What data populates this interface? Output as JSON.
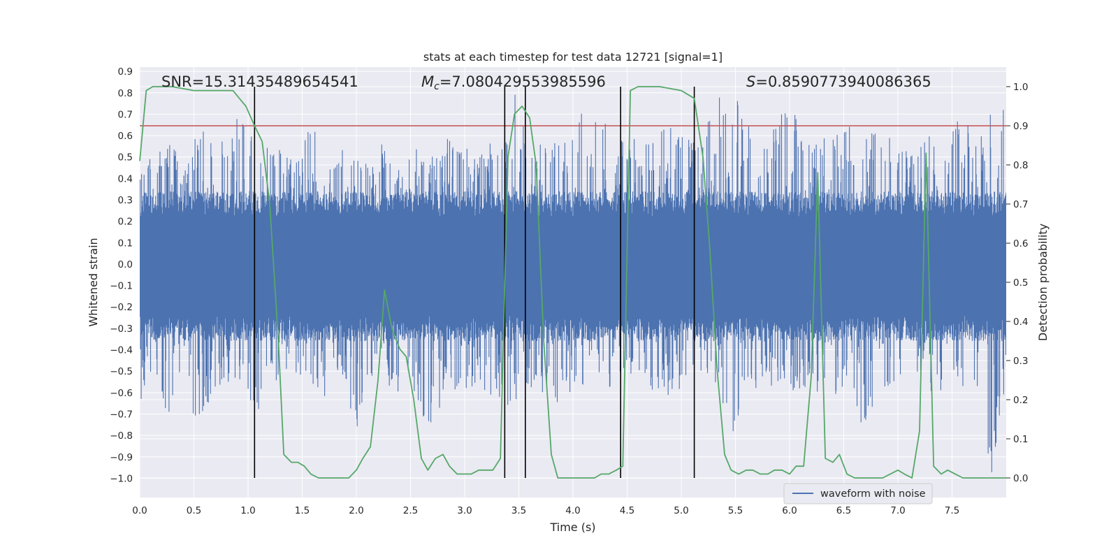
{
  "chart_data": {
    "type": "line",
    "title": "stats at each timestep for test data 12721 [signal=1]",
    "xlabel": "Time (s)",
    "ylabel_left": "Whitened strain",
    "ylabel_right": "Detection probability",
    "xlim": [
      0.0,
      8.0
    ],
    "ylim_left": [
      -1.09,
      0.92
    ],
    "ylim_right": [
      -0.05,
      1.05
    ],
    "xticks": [
      0.0,
      0.5,
      1.0,
      1.5,
      2.0,
      2.5,
      3.0,
      3.5,
      4.0,
      4.5,
      5.0,
      5.5,
      6.0,
      6.5,
      7.0,
      7.5
    ],
    "xtick_labels": [
      "0.0",
      "0.5",
      "1.0",
      "1.5",
      "2.0",
      "2.5",
      "3.0",
      "3.5",
      "4.0",
      "4.5",
      "5.0",
      "5.5",
      "6.0",
      "6.5",
      "7.0",
      "7.5"
    ],
    "yticks_left": [
      0.9,
      0.8,
      0.7,
      0.6,
      0.5,
      0.4,
      0.3,
      0.2,
      0.1,
      0.0,
      -0.1,
      -0.2,
      -0.3,
      -0.4,
      -0.5,
      -0.6,
      -0.7,
      -0.8,
      -0.9,
      -1.0
    ],
    "ytick_labels_left": [
      "0.9",
      "0.8",
      "0.7",
      "0.6",
      "0.5",
      "0.4",
      "0.3",
      "0.2",
      "0.1",
      "0.0",
      "−0.1",
      "−0.2",
      "−0.3",
      "−0.4",
      "−0.5",
      "−0.6",
      "−0.7",
      "−0.8",
      "−0.9",
      "−1.0"
    ],
    "yticks_right": [
      1.0,
      0.9,
      0.8,
      0.7,
      0.6,
      0.5,
      0.4,
      0.3,
      0.2,
      0.1,
      0.0
    ],
    "ytick_labels_right": [
      "1.0",
      "0.9",
      "0.8",
      "0.7",
      "0.6",
      "0.5",
      "0.4",
      "0.3",
      "0.2",
      "0.1",
      "0.0"
    ],
    "annotations": [
      {
        "prefix": "SNR",
        "suffix": "",
        "value": "=15.31435489654541",
        "x": 0.2
      },
      {
        "prefix": "M",
        "suffix": "c",
        "value": "=7.080429553985596",
        "x": 2.6
      },
      {
        "prefix": "S",
        "suffix": "",
        "value": "=0.8590773940086365",
        "x": 5.6
      }
    ],
    "threshold": {
      "value": 0.9,
      "axis": "right",
      "color": "#c44e52"
    },
    "vertical_lines": [
      1.06,
      3.37,
      3.56,
      4.44,
      5.12
    ],
    "waveform": {
      "name": "waveform with noise",
      "color": "#4c72b0",
      "x_range": [
        0.0,
        8.0
      ],
      "envelope_upper": [
        0.48,
        0.5,
        0.58,
        0.47,
        0.65,
        0.6,
        0.58,
        0.72,
        0.55,
        0.6,
        0.52,
        0.48,
        0.7,
        0.5,
        0.55,
        0.48,
        0.52,
        0.58,
        0.5,
        0.55,
        0.52,
        0.58,
        0.62,
        0.5,
        0.6,
        0.52,
        0.8,
        0.55,
        0.58,
        0.6,
        0.62,
        0.8,
        0.7,
        0.6,
        0.58,
        0.62,
        0.62,
        0.65,
        0.58,
        0.6,
        0.8,
        0.82,
        0.68,
        0.62,
        0.65,
        0.78,
        0.62,
        0.58,
        0.6,
        0.65,
        0.6,
        0.62,
        0.65,
        0.58,
        0.6,
        0.62,
        0.65,
        0.7,
        0.6,
        0.72,
        0.78
      ],
      "envelope_lower": [
        -0.7,
        -0.52,
        -0.72,
        -0.5,
        -0.82,
        -0.6,
        -0.55,
        -0.55,
        -0.75,
        -0.52,
        -0.58,
        -0.55,
        -0.6,
        -0.62,
        -0.55,
        -0.8,
        -0.6,
        -0.55,
        -0.62,
        -0.6,
        -0.78,
        -0.65,
        -0.6,
        -0.62,
        -0.6,
        -0.65,
        -0.7,
        -0.58,
        -0.62,
        -0.65,
        -0.6,
        -0.62,
        -0.58,
        -0.6,
        -0.55,
        -0.58,
        -0.62,
        -0.62,
        -0.6,
        -0.58,
        -0.6,
        -0.85,
        -0.62,
        -0.6,
        -0.65,
        -0.6,
        -0.58,
        -0.6,
        -0.62,
        -0.6,
        -0.85,
        -0.62,
        -0.65,
        -0.6,
        -0.58,
        -0.62,
        -0.6,
        -0.62,
        -0.6,
        -0.98,
        -0.6
      ]
    },
    "probability": {
      "color": "#55a868",
      "x": [
        0.0,
        0.06,
        0.12,
        0.3,
        0.5,
        0.7,
        0.86,
        0.92,
        0.98,
        1.06,
        1.13,
        1.2,
        1.28,
        1.33,
        1.4,
        1.46,
        1.52,
        1.58,
        1.65,
        1.73,
        1.8,
        1.86,
        1.93,
        2.0,
        2.06,
        2.13,
        2.2,
        2.26,
        2.33,
        2.4,
        2.46,
        2.53,
        2.6,
        2.66,
        2.73,
        2.8,
        2.86,
        2.93,
        3.0,
        3.06,
        3.13,
        3.2,
        3.26,
        3.33,
        3.4,
        3.46,
        3.53,
        3.6,
        3.66,
        3.73,
        3.8,
        3.86,
        3.93,
        4.0,
        4.06,
        4.13,
        4.2,
        4.26,
        4.33,
        4.4,
        4.46,
        4.53,
        4.6,
        4.8,
        5.0,
        5.06,
        5.12,
        5.2,
        5.26,
        5.33,
        5.4,
        5.46,
        5.53,
        5.6,
        5.66,
        5.73,
        5.8,
        5.86,
        5.93,
        6.0,
        6.06,
        6.13,
        6.2,
        6.26,
        6.33,
        6.4,
        6.46,
        6.53,
        6.6,
        6.66,
        6.73,
        6.8,
        6.86,
        6.93,
        7.0,
        7.06,
        7.13,
        7.2,
        7.26,
        7.33,
        7.4,
        7.46,
        7.53,
        7.6,
        7.66,
        7.73,
        7.8,
        7.86,
        7.93,
        8.0
      ],
      "y": [
        0.81,
        0.99,
        1.0,
        1.0,
        0.99,
        0.99,
        0.99,
        0.97,
        0.95,
        0.9,
        0.86,
        0.7,
        0.35,
        0.06,
        0.04,
        0.04,
        0.03,
        0.01,
        0.0,
        0.0,
        0.0,
        0.0,
        0.0,
        0.02,
        0.05,
        0.08,
        0.25,
        0.48,
        0.38,
        0.33,
        0.31,
        0.2,
        0.05,
        0.02,
        0.05,
        0.06,
        0.03,
        0.01,
        0.01,
        0.01,
        0.02,
        0.02,
        0.02,
        0.05,
        0.82,
        0.93,
        0.95,
        0.92,
        0.8,
        0.35,
        0.06,
        0.0,
        0.0,
        0.0,
        0.0,
        0.0,
        0.0,
        0.01,
        0.01,
        0.02,
        0.03,
        0.99,
        1.0,
        1.0,
        0.99,
        0.98,
        0.97,
        0.82,
        0.6,
        0.28,
        0.06,
        0.02,
        0.01,
        0.02,
        0.02,
        0.01,
        0.01,
        0.02,
        0.02,
        0.01,
        0.03,
        0.03,
        0.26,
        0.78,
        0.05,
        0.04,
        0.06,
        0.01,
        0.0,
        0.0,
        0.0,
        0.0,
        0.0,
        0.01,
        0.02,
        0.01,
        0.0,
        0.12,
        0.83,
        0.03,
        0.01,
        0.02,
        0.01,
        0.0,
        0.0,
        0.0,
        0.0,
        0.0,
        0.0,
        0.0
      ]
    },
    "legend": {
      "label": "waveform with noise",
      "location": "lower-right"
    },
    "grid": true
  }
}
